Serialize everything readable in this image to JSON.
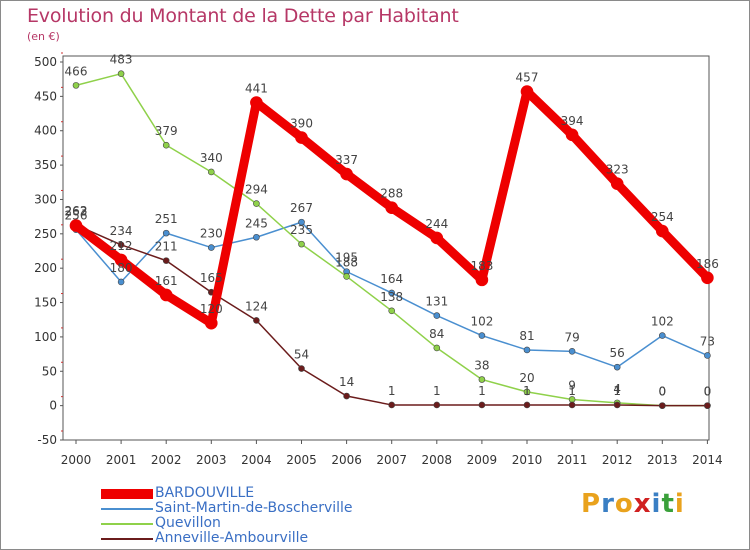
{
  "title": "Evolution du Montant de la Dette par Habitant",
  "unit": "(en €)",
  "logo": {
    "text": "Proxiti",
    "colors": [
      "#e9a21d",
      "#3a7fc4",
      "#e9a21d",
      "#d02020",
      "#3a7fc4",
      "#3aa03a",
      "#e9a21d"
    ]
  },
  "chart_data": {
    "type": "line",
    "x": [
      "2000",
      "2001",
      "2002",
      "2003",
      "2004",
      "2005",
      "2006",
      "2007",
      "2008",
      "2009",
      "2010",
      "2011",
      "2012",
      "2013",
      "2014"
    ],
    "yticks": [
      -50,
      0,
      50,
      100,
      150,
      200,
      250,
      300,
      350,
      400,
      450,
      500
    ],
    "ylim": [
      -50,
      500
    ],
    "grid": false,
    "legend_position": "bottom-left",
    "series": [
      {
        "name": "Saint-Martin-de-Boscherville",
        "color": "#4a8fd0",
        "width": 1.5,
        "values": [
          256,
          180,
          251,
          230,
          245,
          267,
          195,
          164,
          131,
          102,
          81,
          79,
          56,
          102,
          73
        ],
        "labels": [
          "256",
          "180",
          "251",
          "230",
          "245",
          "267",
          "195",
          "164",
          "131",
          "102",
          "81",
          "79",
          "56",
          "102",
          "73"
        ]
      },
      {
        "name": "Quevillon",
        "color": "#8fd14a",
        "width": 1.5,
        "values": [
          466,
          483,
          379,
          340,
          294,
          235,
          188,
          138,
          84,
          38,
          20,
          9,
          4,
          0,
          0
        ],
        "labels": [
          "466",
          "483",
          "379",
          "340",
          "294",
          "235",
          "188",
          "138",
          "84",
          "38",
          "20",
          "9",
          "4",
          "0",
          "0"
        ]
      },
      {
        "name": "Anneville-Ambourville",
        "color": "#6b1c1c",
        "width": 1.5,
        "values": [
          263,
          234,
          211,
          165,
          124,
          54,
          14,
          1,
          1,
          1,
          1,
          1,
          1,
          0,
          0
        ],
        "labels": [
          "263",
          "234",
          "211",
          "165",
          "124",
          "54",
          "14",
          "1",
          "1",
          "1",
          "1",
          "1",
          "1",
          "0",
          "0"
        ]
      },
      {
        "name": "BARDOUVILLE",
        "color": "#ee0000",
        "width": 9,
        "values": [
          262,
          212,
          161,
          120,
          441,
          390,
          337,
          288,
          244,
          183,
          457,
          394,
          323,
          254,
          186
        ],
        "labels": [
          "262",
          "212",
          "161",
          "120",
          "441",
          "390",
          "337",
          "288",
          "244",
          "183",
          "457",
          "394",
          "323",
          "254",
          "186"
        ]
      }
    ],
    "legend_order": [
      "BARDOUVILLE",
      "Saint-Martin-de-Boscherville",
      "Quevillon",
      "Anneville-Ambourville"
    ]
  }
}
